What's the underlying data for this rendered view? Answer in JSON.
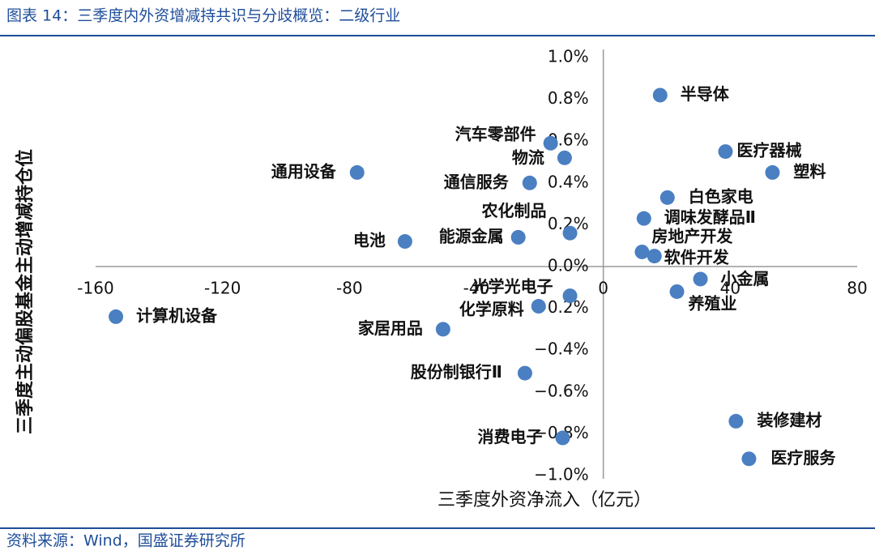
{
  "chart_data": {
    "type": "scatter",
    "title": "图表 14：三季度内外资增减持共识与分歧概览：二级行业",
    "source": "资料来源：Wind，国盛证券研究所",
    "xlabel": "三季度外资净流入（亿元）",
    "ylabel": "三季度主动偏股基金主动增减持仓位",
    "color": "#4a7fc1",
    "labels": [
      "半导体",
      "医疗器械",
      "塑料",
      "白色家电",
      "调味发酵品Ⅱ",
      "房地产开发",
      "软件开发",
      "小金属",
      "养殖业",
      "装修建材",
      "医疗服务",
      "汽车零部件",
      "物流",
      "通信服务",
      "通用设备",
      "农化制品",
      "能源金属",
      "电池",
      "光学光电子",
      "化学原料",
      "计算机设备",
      "家居用品",
      "股份制银行Ⅱ",
      "消费电子"
    ],
    "x": [
      17.9,
      38.5,
      53.3,
      20.2,
      12.8,
      12.2,
      16.1,
      30.6,
      23.2,
      41.8,
      45.9,
      -16.6,
      -12.2,
      -23.2,
      -77.6,
      -10.5,
      -26.8,
      -62.5,
      -10.5,
      -20.4,
      -153.6,
      -50.5,
      -24.7,
      -12.8
    ],
    "y": [
      0.82,
      0.55,
      0.45,
      0.33,
      0.23,
      0.07,
      0.05,
      -0.06,
      -0.12,
      -0.74,
      -0.92,
      0.59,
      0.52,
      0.4,
      0.45,
      0.16,
      0.14,
      0.12,
      -0.14,
      -0.19,
      -0.24,
      -0.3,
      -0.51,
      -0.82
    ],
    "xlim": [
      -160,
      80
    ],
    "ylim": [
      -1.0,
      1.0
    ],
    "xticks": [
      -160,
      -120,
      -80,
      -40,
      0,
      40,
      80
    ],
    "yticks": [
      {
        "value": 1.0,
        "label": "1.0%"
      },
      {
        "value": 0.8,
        "label": "0.8%"
      },
      {
        "value": 0.6,
        "label": "0.6%"
      },
      {
        "value": 0.4,
        "label": "0.4%"
      },
      {
        "value": 0.2,
        "label": "0.2%"
      },
      {
        "value": 0.0,
        "label": "0.0%"
      },
      {
        "value": -0.2,
        "label": "−0.2%"
      },
      {
        "value": -0.4,
        "label": "−0.4%"
      },
      {
        "value": -0.6,
        "label": "−0.6%"
      },
      {
        "value": -0.8,
        "label": "−0.8%"
      },
      {
        "value": -1.0,
        "label": "−1.0%"
      }
    ]
  }
}
